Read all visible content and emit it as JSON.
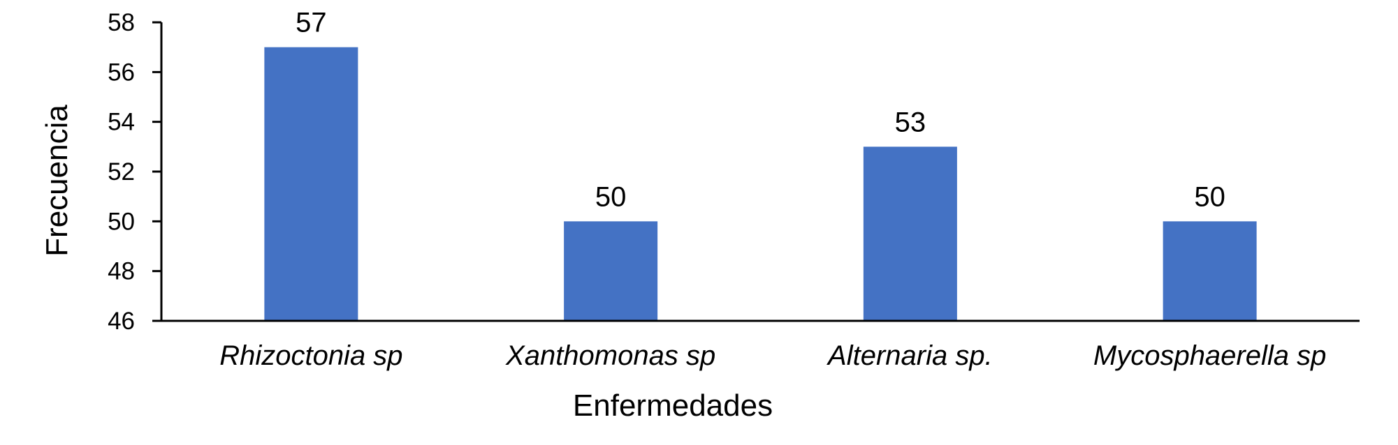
{
  "chart_data": {
    "type": "bar",
    "title": "",
    "xlabel": "Enfermedades",
    "ylabel": "Frecuencia",
    "categories": [
      "Rhizoctonia sp",
      "Xanthomonas sp",
      "Alternaria sp.",
      "Mycosphaerella sp"
    ],
    "values": [
      57,
      50,
      53,
      50
    ],
    "data_labels": [
      "57",
      "50",
      "53",
      "50"
    ],
    "ylim": [
      46,
      58
    ],
    "yticks": [
      46,
      48,
      50,
      52,
      54,
      56,
      58
    ],
    "ytick_labels": [
      "46",
      "48",
      "50",
      "52",
      "54",
      "56",
      "58"
    ],
    "grid": false,
    "legend": null,
    "bar_color": "#4472C4",
    "category_label_style": "italic"
  }
}
